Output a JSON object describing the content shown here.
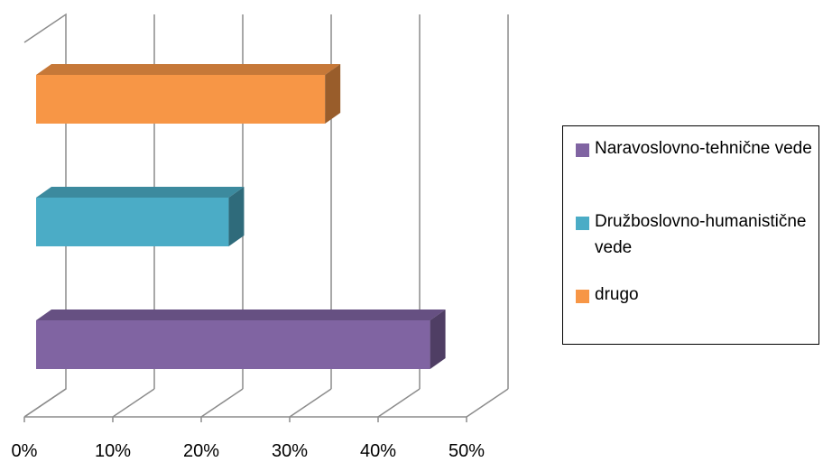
{
  "chart_data": {
    "type": "bar",
    "orientation": "horizontal",
    "style": "3d",
    "title": "",
    "xlabel": "",
    "ylabel": "",
    "xlim": [
      0,
      50
    ],
    "x_ticks": [
      "0%",
      "10%",
      "20%",
      "30%",
      "40%",
      "50%"
    ],
    "grid": true,
    "legend_position": "right",
    "categories": [
      "Naravoslovno-tehnične vede",
      "Družboslovno-humanistične vede",
      "drugo"
    ],
    "values": [
      45,
      22,
      33
    ],
    "unit": "%",
    "colors": [
      "#8064A2",
      "#4BACC6",
      "#F79646"
    ],
    "legend": [
      {
        "label": "Naravoslovno-tehnične vede",
        "color": "#8064A2"
      },
      {
        "label": "Družboslovno-humanistične vede",
        "color": "#4BACC6"
      },
      {
        "label": "drugo",
        "color": "#F79646"
      }
    ]
  }
}
